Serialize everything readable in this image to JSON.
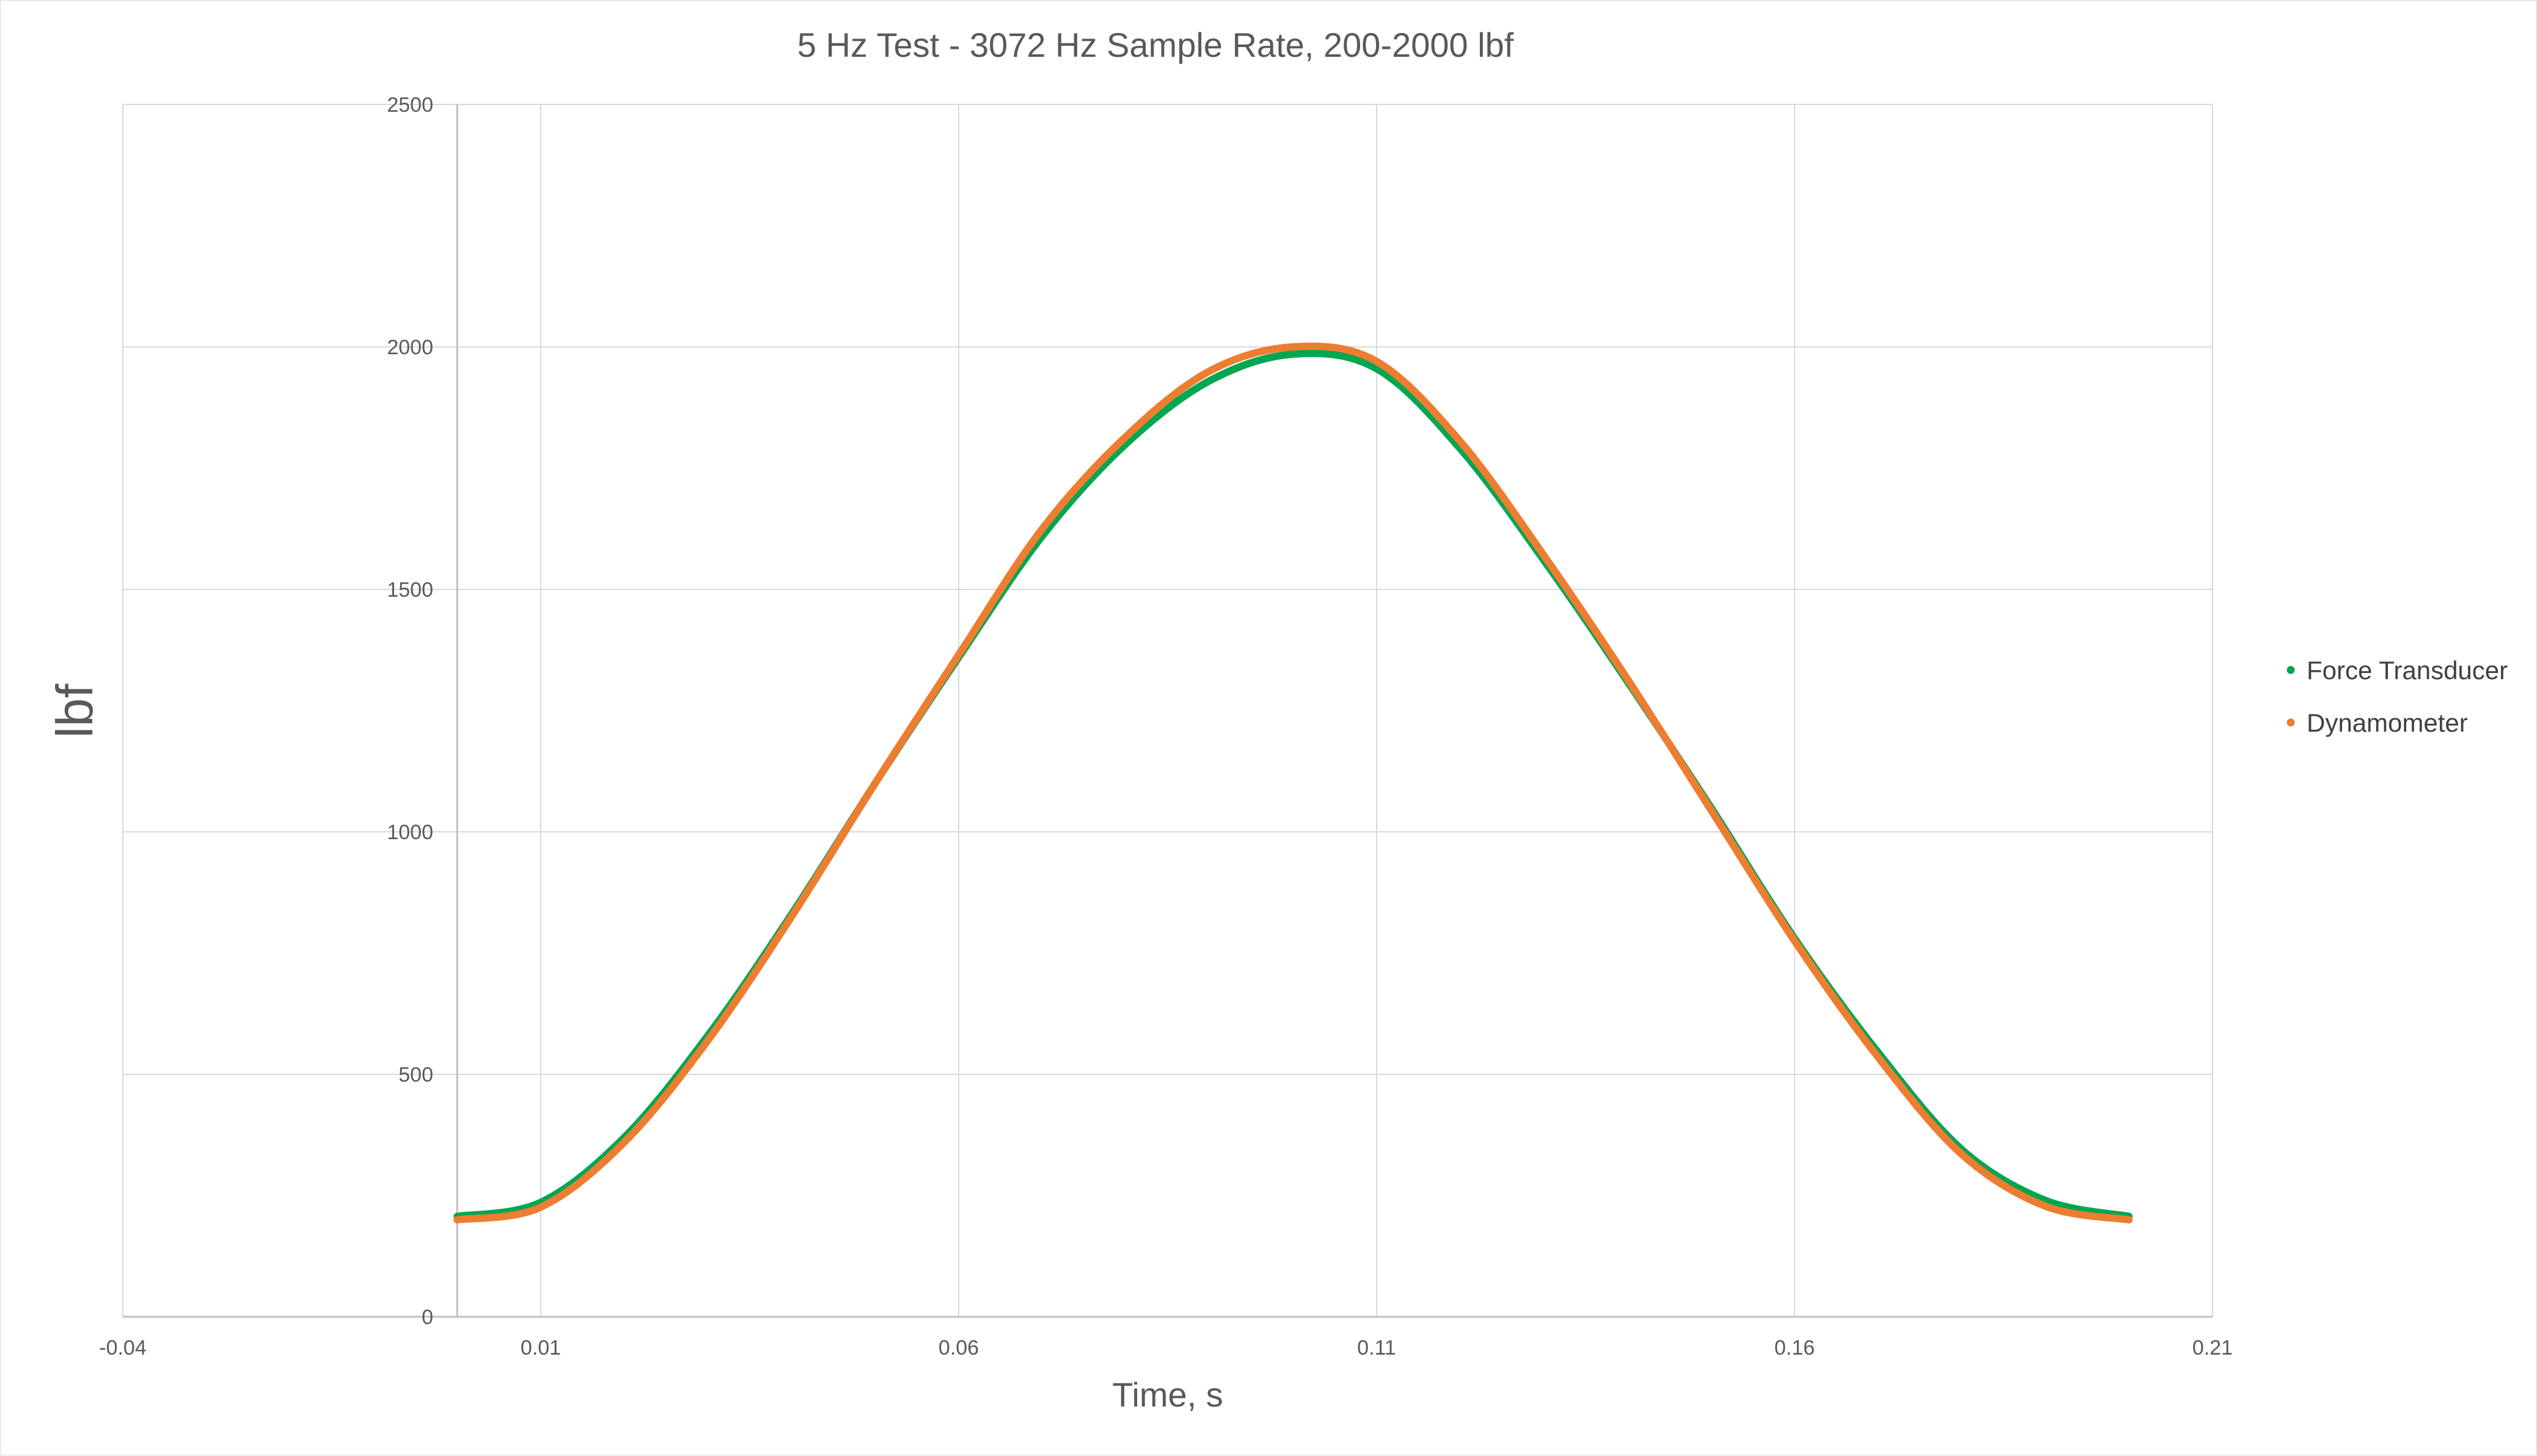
{
  "chart_data": {
    "type": "scatter",
    "title": "5 Hz Test - 3072 Hz Sample Rate, 200-2000 lbf",
    "xlabel": "Time, s",
    "ylabel": "lbf",
    "xlim": [
      -0.04,
      0.21
    ],
    "ylim": [
      0,
      2500
    ],
    "x_ticks": [
      -0.04,
      0.01,
      0.06,
      0.11,
      0.16,
      0.21
    ],
    "x_tick_labels": [
      "-0.04",
      "0.01",
      "0.06",
      "0.11",
      "0.16",
      "0.21"
    ],
    "y_ticks": [
      0,
      500,
      1000,
      1500,
      2000,
      2500
    ],
    "y_tick_labels": [
      "0",
      "500",
      "1000",
      "1500",
      "2000",
      "2500"
    ],
    "grid": true,
    "legend_position": "right",
    "series": [
      {
        "name": "Force Transducer",
        "color": "#00a651",
        "marker": "dot",
        "x": [
          0.0,
          0.01,
          0.02,
          0.03,
          0.04,
          0.05,
          0.06,
          0.07,
          0.08,
          0.09,
          0.1,
          0.11,
          0.12,
          0.13,
          0.14,
          0.15,
          0.16,
          0.17,
          0.18,
          0.19,
          0.2
        ],
        "y": [
          207,
          236,
          370,
          580,
          830,
          1100,
          1360,
          1610,
          1800,
          1930,
          1985,
          1955,
          1790,
          1560,
          1310,
          1050,
          780,
          545,
          345,
          240,
          207
        ]
      },
      {
        "name": "Dynamometer",
        "color": "#ed7d31",
        "marker": "dot",
        "x": [
          0.0,
          0.01,
          0.02,
          0.03,
          0.04,
          0.05,
          0.06,
          0.07,
          0.08,
          0.09,
          0.1,
          0.11,
          0.12,
          0.13,
          0.14,
          0.15,
          0.16,
          0.17,
          0.18,
          0.19,
          0.2
        ],
        "y": [
          200,
          226,
          360,
          570,
          825,
          1100,
          1365,
          1625,
          1815,
          1950,
          2000,
          1970,
          1805,
          1570,
          1315,
          1045,
          775,
          535,
          335,
          228,
          200
        ]
      }
    ]
  }
}
